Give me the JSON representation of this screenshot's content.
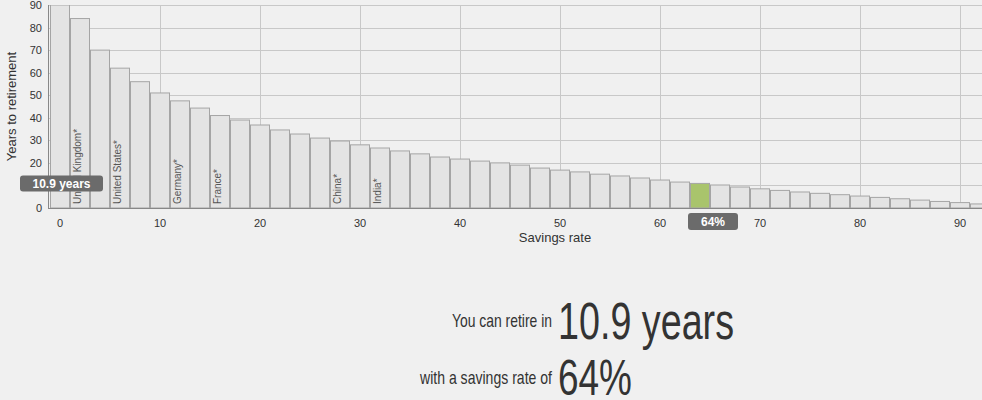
{
  "chart_data": {
    "type": "bar",
    "x_label": "Savings rate",
    "y_label": "Years to retirement",
    "x": [
      0,
      2,
      4,
      6,
      8,
      10,
      12,
      14,
      16,
      18,
      20,
      22,
      24,
      26,
      28,
      30,
      32,
      34,
      36,
      38,
      40,
      42,
      44,
      46,
      48,
      50,
      52,
      54,
      56,
      58,
      60,
      62,
      64,
      66,
      68,
      70,
      72,
      74,
      76,
      78,
      80,
      82,
      84,
      86,
      88,
      90,
      92
    ],
    "values": [
      90,
      84,
      70,
      62,
      56,
      51,
      47.5,
      44.3,
      41,
      39,
      36.8,
      34.6,
      32.8,
      31,
      29.7,
      28,
      26.6,
      25.3,
      24,
      22.6,
      21.7,
      20.8,
      20,
      19,
      17.7,
      16.8,
      16,
      15,
      14.2,
      13.3,
      12.4,
      11.5,
      10.9,
      10.2,
      9.3,
      8.5,
      7.8,
      7.1,
      6.5,
      5.9,
      5.3,
      4.7,
      4.1,
      3.5,
      2.9,
      2.4,
      1.8
    ],
    "colors": [
      "#e4e4e4",
      "#e4e4e4",
      "#e4e4e4",
      "#e4e4e4",
      "#e4e4e4",
      "#e4e4e4",
      "#e4e4e4",
      "#e4e4e4",
      "#e4e4e4",
      "#e4e4e4",
      "#e4e4e4",
      "#e4e4e4",
      "#e4e4e4",
      "#e4e4e4",
      "#e4e4e4",
      "#e4e4e4",
      "#e4e4e4",
      "#e4e4e4",
      "#e4e4e4",
      "#e4e4e4",
      "#e4e4e4",
      "#e4e4e4",
      "#e4e4e4",
      "#e4e4e4",
      "#e4e4e4",
      "#e4e4e4",
      "#e4e4e4",
      "#e4e4e4",
      "#e4e4e4",
      "#e4e4e4",
      "#e4e4e4",
      "#e4e4e4",
      "#a9c46c",
      "#e4e4e4",
      "#e4e4e4",
      "#e4e4e4",
      "#e4e4e4",
      "#e4e4e4",
      "#e4e4e4",
      "#e4e4e4",
      "#e4e4e4",
      "#e4e4e4",
      "#e4e4e4",
      "#e4e4e4",
      "#e4e4e4",
      "#e4e4e4",
      "#e4e4e4"
    ],
    "xlim": [
      -1.2,
      92.2
    ],
    "ylim": [
      0,
      90
    ],
    "xticks": [
      0,
      10,
      20,
      30,
      40,
      50,
      60,
      70,
      80,
      90
    ],
    "yticks": [
      0,
      10,
      20,
      30,
      40,
      50,
      60,
      70,
      80,
      90
    ],
    "grid": true,
    "annotations": [
      {
        "x": 2,
        "label": "United Kingdom*"
      },
      {
        "x": 6,
        "label": "United States*"
      },
      {
        "x": 12,
        "label": "Germany*"
      },
      {
        "x": 16,
        "label": "France*"
      },
      {
        "x": 28,
        "label": "China*"
      },
      {
        "x": 32,
        "label": "India*"
      }
    ],
    "highlight": {
      "x": 64,
      "x_label": "64%",
      "y": 10.9,
      "y_label": "10.9 years"
    },
    "caption_lines": [
      "You can retire in",
      "with a savings rate of"
    ]
  }
}
